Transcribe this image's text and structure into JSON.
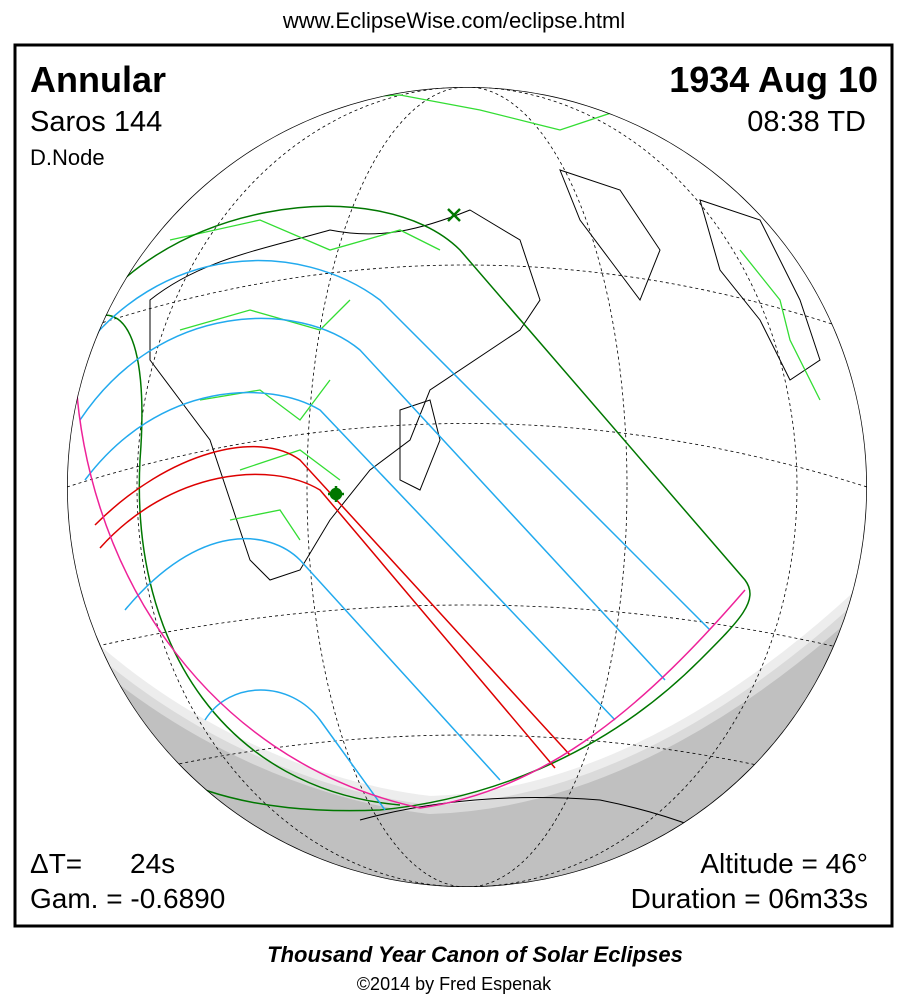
{
  "header": {
    "url": "www.EclipseWise.com/eclipse.html"
  },
  "panel": {
    "eclipse_type": "Annular",
    "date": "1934 Aug 10",
    "saros": "Saros 144",
    "time": "08:38 TD",
    "node": "D.Node",
    "delta_t_label": "ΔT=",
    "delta_t_value": "24s",
    "gamma": "Gam. = -0.6890",
    "altitude": "Altitude = 46°",
    "duration": "Duration = 06m33s"
  },
  "footer": {
    "title": "Thousand Year Canon of Solar Eclipses",
    "copyright": "©2014 by Fred Espenak"
  }
}
